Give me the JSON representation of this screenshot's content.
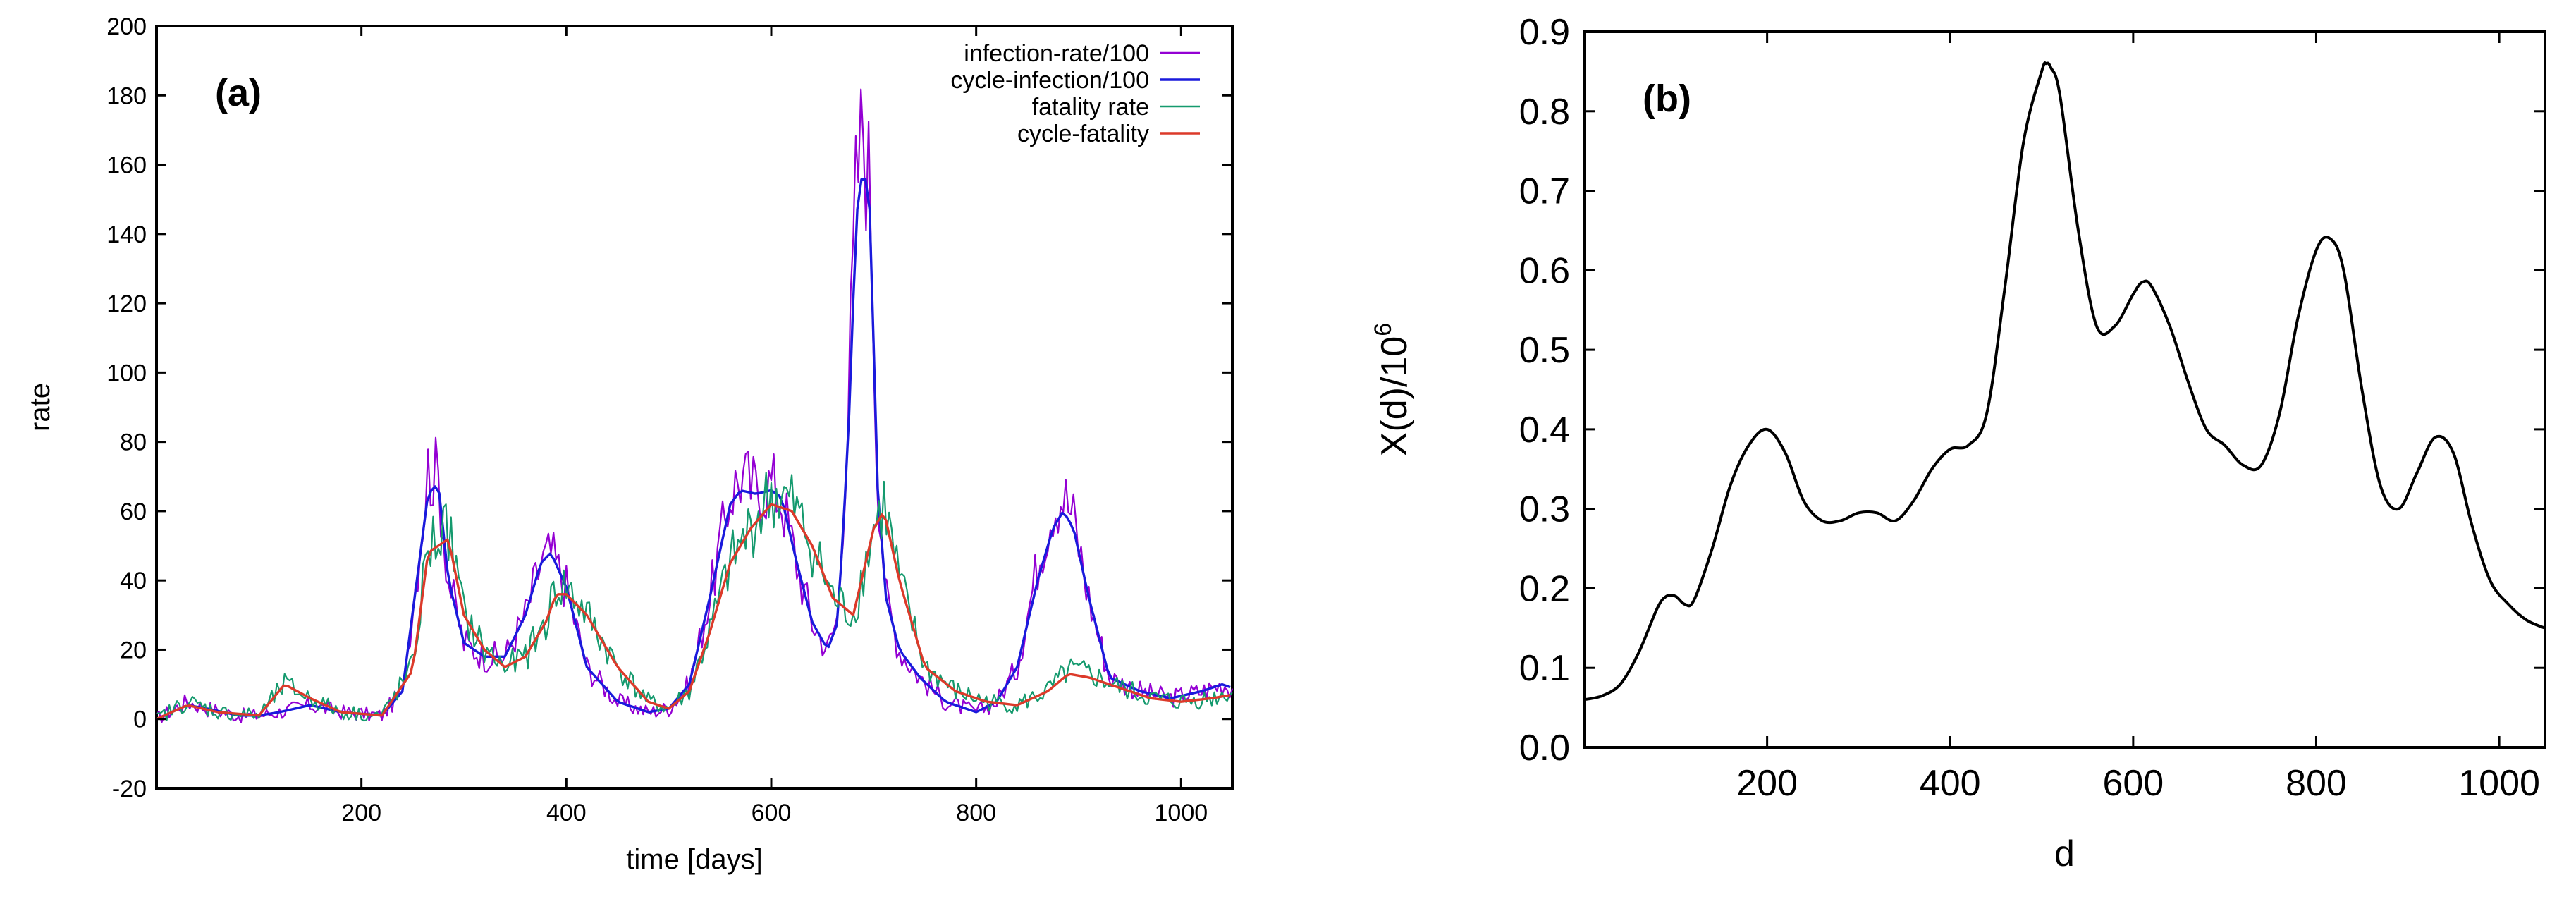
{
  "chart_data": [
    {
      "type": "line",
      "panel_label": "(a)",
      "xlabel": "time [days]",
      "ylabel": "rate",
      "xlim": [
        0,
        1050
      ],
      "ylim": [
        -20,
        200
      ],
      "xticks": [
        200,
        400,
        600,
        800,
        1000
      ],
      "yticks": [
        -20,
        0,
        20,
        40,
        60,
        80,
        100,
        120,
        140,
        160,
        180,
        200
      ],
      "legend_position": "top-right",
      "series": [
        {
          "name": "infection-rate/100",
          "color": "#9400d3",
          "noisy": true,
          "x": [
            0,
            30,
            50,
            80,
            100,
            120,
            150,
            180,
            220,
            240,
            255,
            265,
            275,
            285,
            300,
            320,
            340,
            360,
            375,
            385,
            400,
            420,
            450,
            480,
            500,
            520,
            540,
            560,
            570,
            585,
            600,
            610,
            625,
            640,
            655,
            665,
            675,
            683,
            690,
            697,
            703,
            712,
            725,
            745,
            770,
            800,
            820,
            840,
            860,
            875,
            885,
            895,
            910,
            930,
            960,
            990,
            1020,
            1040,
            1050
          ],
          "values": [
            0,
            5,
            3,
            1,
            1,
            2,
            4,
            2,
            1,
            8,
            45,
            72,
            70,
            40,
            22,
            18,
            18,
            30,
            45,
            48,
            38,
            15,
            5,
            2,
            3,
            10,
            35,
            65,
            70,
            66,
            68,
            64,
            45,
            28,
            20,
            30,
            90,
            155,
            172,
            150,
            75,
            35,
            20,
            12,
            5,
            2,
            5,
            15,
            45,
            62,
            65,
            58,
            35,
            12,
            8,
            6,
            8,
            10,
            9
          ]
        },
        {
          "name": "cycle-infection/100",
          "color": "#1a1adc",
          "noisy": false,
          "x": [
            0,
            30,
            50,
            80,
            100,
            120,
            150,
            180,
            220,
            240,
            255,
            265,
            275,
            285,
            300,
            320,
            340,
            360,
            375,
            385,
            400,
            420,
            450,
            480,
            500,
            520,
            540,
            560,
            570,
            585,
            600,
            610,
            625,
            640,
            655,
            665,
            675,
            683,
            690,
            697,
            703,
            712,
            725,
            745,
            770,
            800,
            820,
            840,
            860,
            875,
            885,
            895,
            910,
            930,
            960,
            990,
            1020,
            1040,
            1050
          ],
          "values": [
            0,
            4,
            3,
            1,
            1,
            2,
            4,
            2,
            1,
            8,
            42,
            65,
            68,
            40,
            22,
            18,
            18,
            30,
            45,
            48,
            38,
            15,
            5,
            2,
            3,
            10,
            35,
            62,
            66,
            65,
            66,
            64,
            45,
            28,
            20,
            28,
            80,
            145,
            160,
            145,
            70,
            35,
            20,
            12,
            5,
            2,
            5,
            15,
            40,
            55,
            60,
            55,
            35,
            12,
            8,
            6,
            8,
            10,
            9
          ]
        },
        {
          "name": "fatality rate",
          "color": "#159a6e",
          "noisy": true,
          "x": [
            0,
            30,
            60,
            100,
            125,
            150,
            180,
            220,
            250,
            265,
            285,
            300,
            320,
            340,
            360,
            380,
            390,
            400,
            420,
            450,
            480,
            500,
            520,
            540,
            560,
            580,
            600,
            620,
            640,
            660,
            680,
            700,
            710,
            725,
            750,
            780,
            810,
            840,
            870,
            890,
            910,
            940,
            970,
            1000,
            1030,
            1050
          ],
          "values": [
            0,
            5,
            2,
            1,
            10,
            6,
            2,
            1,
            15,
            50,
            55,
            30,
            20,
            15,
            18,
            28,
            38,
            38,
            30,
            15,
            5,
            3,
            8,
            25,
            45,
            55,
            65,
            62,
            50,
            35,
            30,
            55,
            62,
            40,
            15,
            8,
            5,
            4,
            8,
            14,
            13,
            9,
            6,
            5,
            6,
            8
          ]
        },
        {
          "name": "cycle-fatality",
          "color": "#dc3a2a",
          "noisy": false,
          "x": [
            0,
            30,
            60,
            100,
            125,
            150,
            180,
            220,
            250,
            265,
            285,
            300,
            320,
            340,
            360,
            380,
            390,
            400,
            420,
            450,
            480,
            500,
            520,
            540,
            560,
            580,
            600,
            620,
            640,
            660,
            680,
            700,
            710,
            725,
            750,
            780,
            810,
            840,
            870,
            890,
            910,
            940,
            970,
            1000,
            1030,
            1050
          ],
          "values": [
            0,
            4,
            2,
            1,
            10,
            6,
            2,
            1,
            14,
            48,
            52,
            30,
            20,
            15,
            18,
            28,
            36,
            36,
            30,
            15,
            5,
            3,
            8,
            25,
            45,
            55,
            62,
            60,
            50,
            35,
            30,
            55,
            60,
            40,
            15,
            8,
            5,
            4,
            8,
            13,
            12,
            9,
            6,
            5,
            6,
            7
          ]
        }
      ]
    },
    {
      "type": "line",
      "panel_label": "(b)",
      "xlabel": "d",
      "ylabel_main": "X(d)/10",
      "ylabel_exponent": "6",
      "xlim": [
        0,
        1050
      ],
      "ylim": [
        0,
        0.9
      ],
      "xticks": [
        200,
        400,
        600,
        800,
        1000
      ],
      "yticks": [
        "0.0",
        "0.1",
        "0.2",
        "0.3",
        "0.4",
        "0.5",
        "0.6",
        "0.7",
        "0.8",
        "0.9"
      ],
      "series": [
        {
          "name": "X(d)",
          "color": "#000000",
          "x": [
            0,
            20,
            40,
            60,
            80,
            90,
            100,
            110,
            120,
            140,
            160,
            180,
            200,
            220,
            240,
            260,
            280,
            300,
            320,
            340,
            360,
            380,
            400,
            420,
            440,
            460,
            480,
            500,
            505,
            510,
            520,
            540,
            560,
            580,
            600,
            610,
            620,
            640,
            660,
            680,
            700,
            720,
            740,
            760,
            780,
            800,
            815,
            830,
            850,
            870,
            890,
            910,
            930,
            950,
            970,
            990,
            1010,
            1030,
            1050
          ],
          "values": [
            0.06,
            0.065,
            0.08,
            0.12,
            0.175,
            0.19,
            0.19,
            0.18,
            0.185,
            0.25,
            0.33,
            0.38,
            0.4,
            0.37,
            0.31,
            0.285,
            0.285,
            0.295,
            0.295,
            0.285,
            0.31,
            0.35,
            0.375,
            0.38,
            0.42,
            0.58,
            0.76,
            0.85,
            0.86,
            0.855,
            0.82,
            0.65,
            0.53,
            0.53,
            0.57,
            0.585,
            0.58,
            0.53,
            0.46,
            0.4,
            0.38,
            0.355,
            0.355,
            0.42,
            0.54,
            0.625,
            0.64,
            0.6,
            0.45,
            0.33,
            0.3,
            0.345,
            0.39,
            0.37,
            0.28,
            0.21,
            0.18,
            0.16,
            0.15
          ]
        }
      ]
    }
  ]
}
